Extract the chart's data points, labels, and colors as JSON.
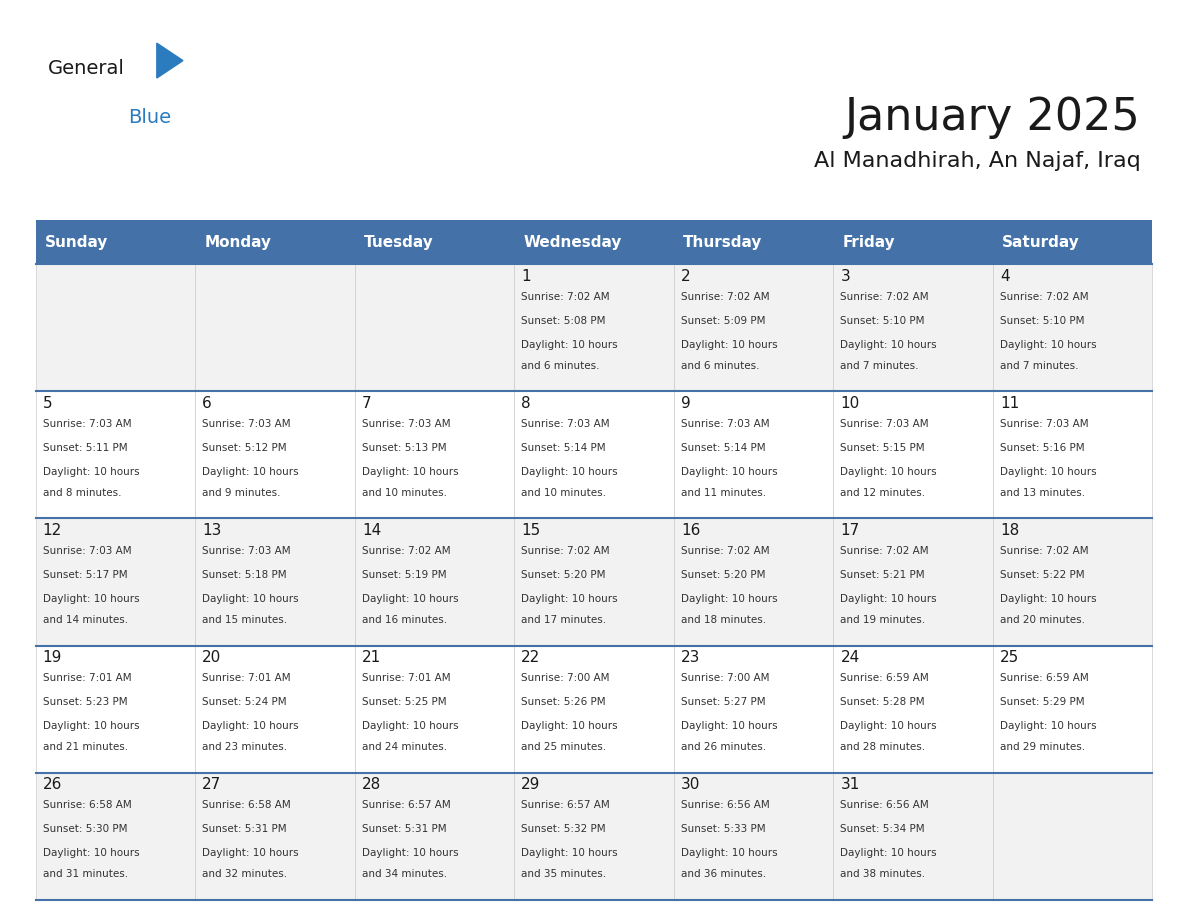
{
  "title": "January 2025",
  "subtitle": "Al Manadhirah, An Najaf, Iraq",
  "header_bg": "#4472a8",
  "header_text": "#ffffff",
  "row_bg_light": "#f2f2f2",
  "row_bg_white": "#ffffff",
  "border_color": "#4472a8",
  "day_names": [
    "Sunday",
    "Monday",
    "Tuesday",
    "Wednesday",
    "Thursday",
    "Friday",
    "Saturday"
  ],
  "days": [
    {
      "day": 1,
      "col": 3,
      "row": 0,
      "sunrise": "7:02 AM",
      "sunset": "5:08 PM",
      "daylight": "10 hours and 6 minutes."
    },
    {
      "day": 2,
      "col": 4,
      "row": 0,
      "sunrise": "7:02 AM",
      "sunset": "5:09 PM",
      "daylight": "10 hours and 6 minutes."
    },
    {
      "day": 3,
      "col": 5,
      "row": 0,
      "sunrise": "7:02 AM",
      "sunset": "5:10 PM",
      "daylight": "10 hours and 7 minutes."
    },
    {
      "day": 4,
      "col": 6,
      "row": 0,
      "sunrise": "7:02 AM",
      "sunset": "5:10 PM",
      "daylight": "10 hours and 7 minutes."
    },
    {
      "day": 5,
      "col": 0,
      "row": 1,
      "sunrise": "7:03 AM",
      "sunset": "5:11 PM",
      "daylight": "10 hours and 8 minutes."
    },
    {
      "day": 6,
      "col": 1,
      "row": 1,
      "sunrise": "7:03 AM",
      "sunset": "5:12 PM",
      "daylight": "10 hours and 9 minutes."
    },
    {
      "day": 7,
      "col": 2,
      "row": 1,
      "sunrise": "7:03 AM",
      "sunset": "5:13 PM",
      "daylight": "10 hours and 10 minutes."
    },
    {
      "day": 8,
      "col": 3,
      "row": 1,
      "sunrise": "7:03 AM",
      "sunset": "5:14 PM",
      "daylight": "10 hours and 10 minutes."
    },
    {
      "day": 9,
      "col": 4,
      "row": 1,
      "sunrise": "7:03 AM",
      "sunset": "5:14 PM",
      "daylight": "10 hours and 11 minutes."
    },
    {
      "day": 10,
      "col": 5,
      "row": 1,
      "sunrise": "7:03 AM",
      "sunset": "5:15 PM",
      "daylight": "10 hours and 12 minutes."
    },
    {
      "day": 11,
      "col": 6,
      "row": 1,
      "sunrise": "7:03 AM",
      "sunset": "5:16 PM",
      "daylight": "10 hours and 13 minutes."
    },
    {
      "day": 12,
      "col": 0,
      "row": 2,
      "sunrise": "7:03 AM",
      "sunset": "5:17 PM",
      "daylight": "10 hours and 14 minutes."
    },
    {
      "day": 13,
      "col": 1,
      "row": 2,
      "sunrise": "7:03 AM",
      "sunset": "5:18 PM",
      "daylight": "10 hours and 15 minutes."
    },
    {
      "day": 14,
      "col": 2,
      "row": 2,
      "sunrise": "7:02 AM",
      "sunset": "5:19 PM",
      "daylight": "10 hours and 16 minutes."
    },
    {
      "day": 15,
      "col": 3,
      "row": 2,
      "sunrise": "7:02 AM",
      "sunset": "5:20 PM",
      "daylight": "10 hours and 17 minutes."
    },
    {
      "day": 16,
      "col": 4,
      "row": 2,
      "sunrise": "7:02 AM",
      "sunset": "5:20 PM",
      "daylight": "10 hours and 18 minutes."
    },
    {
      "day": 17,
      "col": 5,
      "row": 2,
      "sunrise": "7:02 AM",
      "sunset": "5:21 PM",
      "daylight": "10 hours and 19 minutes."
    },
    {
      "day": 18,
      "col": 6,
      "row": 2,
      "sunrise": "7:02 AM",
      "sunset": "5:22 PM",
      "daylight": "10 hours and 20 minutes."
    },
    {
      "day": 19,
      "col": 0,
      "row": 3,
      "sunrise": "7:01 AM",
      "sunset": "5:23 PM",
      "daylight": "10 hours and 21 minutes."
    },
    {
      "day": 20,
      "col": 1,
      "row": 3,
      "sunrise": "7:01 AM",
      "sunset": "5:24 PM",
      "daylight": "10 hours and 23 minutes."
    },
    {
      "day": 21,
      "col": 2,
      "row": 3,
      "sunrise": "7:01 AM",
      "sunset": "5:25 PM",
      "daylight": "10 hours and 24 minutes."
    },
    {
      "day": 22,
      "col": 3,
      "row": 3,
      "sunrise": "7:00 AM",
      "sunset": "5:26 PM",
      "daylight": "10 hours and 25 minutes."
    },
    {
      "day": 23,
      "col": 4,
      "row": 3,
      "sunrise": "7:00 AM",
      "sunset": "5:27 PM",
      "daylight": "10 hours and 26 minutes."
    },
    {
      "day": 24,
      "col": 5,
      "row": 3,
      "sunrise": "6:59 AM",
      "sunset": "5:28 PM",
      "daylight": "10 hours and 28 minutes."
    },
    {
      "day": 25,
      "col": 6,
      "row": 3,
      "sunrise": "6:59 AM",
      "sunset": "5:29 PM",
      "daylight": "10 hours and 29 minutes."
    },
    {
      "day": 26,
      "col": 0,
      "row": 4,
      "sunrise": "6:58 AM",
      "sunset": "5:30 PM",
      "daylight": "10 hours and 31 minutes."
    },
    {
      "day": 27,
      "col": 1,
      "row": 4,
      "sunrise": "6:58 AM",
      "sunset": "5:31 PM",
      "daylight": "10 hours and 32 minutes."
    },
    {
      "day": 28,
      "col": 2,
      "row": 4,
      "sunrise": "6:57 AM",
      "sunset": "5:31 PM",
      "daylight": "10 hours and 34 minutes."
    },
    {
      "day": 29,
      "col": 3,
      "row": 4,
      "sunrise": "6:57 AM",
      "sunset": "5:32 PM",
      "daylight": "10 hours and 35 minutes."
    },
    {
      "day": 30,
      "col": 4,
      "row": 4,
      "sunrise": "6:56 AM",
      "sunset": "5:33 PM",
      "daylight": "10 hours and 36 minutes."
    },
    {
      "day": 31,
      "col": 5,
      "row": 4,
      "sunrise": "6:56 AM",
      "sunset": "5:34 PM",
      "daylight": "10 hours and 38 minutes."
    }
  ],
  "logo_text_general": "General",
  "logo_text_blue": "Blue",
  "logo_color_general": "#1a1a1a",
  "logo_color_blue": "#2b7bbf",
  "logo_triangle_color": "#2b7bbf"
}
